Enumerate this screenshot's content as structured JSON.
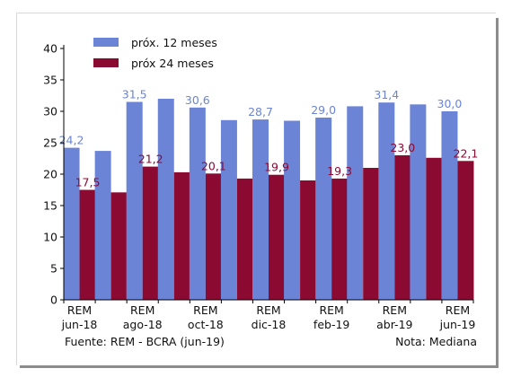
{
  "chart_data": {
    "type": "bar",
    "categories": [
      "REM jun-18",
      "",
      "REM ago-18",
      "",
      "REM oct-18",
      "",
      "REM dic-18",
      "",
      "REM feb-19",
      "",
      "REM abr-19",
      "",
      "REM jun-19"
    ],
    "category_labels": [
      {
        "line1": "REM",
        "line2": "jun-18"
      },
      {
        "line1": "",
        "line2": ""
      },
      {
        "line1": "REM",
        "line2": "ago-18"
      },
      {
        "line1": "",
        "line2": ""
      },
      {
        "line1": "REM",
        "line2": "oct-18"
      },
      {
        "line1": "",
        "line2": ""
      },
      {
        "line1": "REM",
        "line2": "dic-18"
      },
      {
        "line1": "",
        "line2": ""
      },
      {
        "line1": "REM",
        "line2": "feb-19"
      },
      {
        "line1": "",
        "line2": ""
      },
      {
        "line1": "REM",
        "line2": "abr-19"
      },
      {
        "line1": "",
        "line2": ""
      },
      {
        "line1": "REM",
        "line2": "jun-19"
      }
    ],
    "series": [
      {
        "name": "próx. 12 meses",
        "color": "#6b84d6",
        "label_color": "#6b84d6",
        "values": [
          24.2,
          23.7,
          31.5,
          32.0,
          30.6,
          28.6,
          28.7,
          28.5,
          29.0,
          30.8,
          31.4,
          31.1,
          30.0
        ],
        "data_labels": [
          "24,2",
          "",
          "31,5",
          "",
          "30,6",
          "",
          "28,7",
          "",
          "29,0",
          "",
          "31,4",
          "",
          "30,0"
        ]
      },
      {
        "name": "próx 24 meses",
        "color": "#8b0a32",
        "label_color": "#8b0a32",
        "values": [
          17.5,
          17.1,
          21.2,
          20.3,
          20.1,
          19.3,
          19.9,
          19.0,
          19.3,
          21.0,
          23.0,
          22.6,
          22.1
        ],
        "data_labels": [
          "17,5",
          "",
          "21,2",
          "",
          "20,1",
          "",
          "19,9",
          "",
          "19,3",
          "",
          "23,0",
          "",
          "22,1"
        ]
      }
    ],
    "yticks": [
      "0",
      "5",
      "10",
      "15",
      "20",
      "25",
      "30",
      "35",
      "40"
    ],
    "ylim": [
      0,
      40
    ],
    "legend": "top-left",
    "footer_source": "Fuente: REM - BCRA (jun-19)",
    "footer_note": "Nota: Mediana"
  }
}
